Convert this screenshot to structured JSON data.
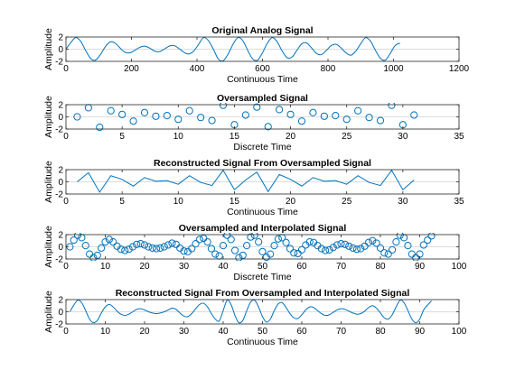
{
  "figure": {
    "background": "#ffffff",
    "line_color": "#0072BD",
    "grid_color": "#d0d0d0"
  },
  "chart_data": [
    {
      "type": "line",
      "title": "Original Analog Signal",
      "xlabel": "Continuous Time",
      "ylabel": "Amplitude",
      "xlim": [
        0,
        1200
      ],
      "ylim": [
        -2,
        2
      ],
      "xticks": [
        0,
        200,
        400,
        600,
        800,
        1000,
        1200
      ],
      "yticks": [
        -2,
        0,
        2
      ],
      "grid": true,
      "legend": "none",
      "series": [
        {
          "marker": "none",
          "x": [
            0,
            15,
            30,
            45,
            60,
            75,
            90,
            105,
            120,
            135,
            150,
            165,
            180,
            195,
            210,
            225,
            240,
            255,
            270,
            285,
            300,
            315,
            330,
            345,
            360,
            375,
            390,
            405,
            420,
            435,
            450,
            465,
            480,
            495,
            510,
            525,
            540,
            555,
            570,
            585,
            600,
            615,
            630,
            645,
            660,
            675,
            690,
            705,
            720,
            735,
            750,
            765,
            780,
            795,
            810,
            825,
            840,
            855,
            870,
            885,
            900,
            915,
            930,
            945,
            960,
            975,
            990,
            1005,
            1020
          ],
          "y": [
            0,
            1.1,
            1.9,
            1.3,
            -0.2,
            -1.5,
            -1.8,
            -0.9,
            0.4,
            1.2,
            1.0,
            0.2,
            -0.5,
            -0.6,
            -0.2,
            0.3,
            0.5,
            0.2,
            -0.3,
            -0.4,
            0,
            0.5,
            0.6,
            0.1,
            -0.5,
            -0.8,
            -0.3,
            0.8,
            1.9,
            1.4,
            0,
            -1.6,
            -1.9,
            -0.8,
            0.8,
            1.9,
            1.4,
            -0.2,
            -1.6,
            -1.8,
            -0.6,
            1.0,
            1.9,
            1.2,
            -0.3,
            -1.4,
            -1.3,
            -0.2,
            0.9,
            1.0,
            0.2,
            -0.7,
            -0.9,
            -0.2,
            0.6,
            0.8,
            0.2,
            -0.6,
            -1.0,
            -0.3,
            0.9,
            1.9,
            1.3,
            -0.2,
            -1.5,
            -1.8,
            -0.7,
            0.6,
            1.0
          ]
        }
      ]
    },
    {
      "type": "scatter",
      "title": "Oversampled Signal",
      "xlabel": "Discrete Time",
      "ylabel": "Amplitude",
      "xlim": [
        0,
        35
      ],
      "ylim": [
        -2,
        2
      ],
      "xticks": [
        0,
        5,
        10,
        15,
        20,
        25,
        30,
        35
      ],
      "yticks": [
        -2,
        0,
        2
      ],
      "grid": true,
      "legend": "none",
      "series": [
        {
          "marker": "o",
          "x": [
            1,
            2,
            3,
            4,
            5,
            6,
            7,
            8,
            9,
            10,
            11,
            12,
            13,
            14,
            15,
            16,
            17,
            18,
            19,
            20,
            21,
            22,
            23,
            24,
            25,
            26,
            27,
            28,
            29,
            30,
            31
          ],
          "y": [
            0,
            1.5,
            -1.7,
            1.0,
            0.4,
            -0.7,
            0.7,
            0.1,
            0.2,
            -0.4,
            1.0,
            -0.1,
            -0.6,
            1.9,
            -1.3,
            0.3,
            1.6,
            -1.6,
            1.2,
            0.4,
            -0.7,
            0.7,
            0.1,
            0.2,
            -0.4,
            1.0,
            -0.1,
            -0.6,
            1.9,
            -1.3,
            0.3
          ]
        }
      ]
    },
    {
      "type": "line",
      "title": "Reconstructed Signal From Oversampled Signal",
      "xlabel": "Continuous Time",
      "ylabel": "Amplitude",
      "xlim": [
        0,
        35
      ],
      "ylim": [
        -2,
        2
      ],
      "xticks": [
        0,
        5,
        10,
        15,
        20,
        25,
        30,
        35
      ],
      "yticks": [
        -2,
        0,
        2
      ],
      "grid": true,
      "legend": "none",
      "series": [
        {
          "marker": "none",
          "x": [
            1,
            2,
            3,
            4,
            5,
            6,
            7,
            8,
            9,
            10,
            11,
            12,
            13,
            14,
            15,
            16,
            17,
            18,
            19,
            20,
            21,
            22,
            23,
            24,
            25,
            26,
            27,
            28,
            29,
            30,
            31
          ],
          "y": [
            0,
            1.5,
            -1.7,
            1.0,
            0.4,
            -0.7,
            0.7,
            0.1,
            0.2,
            -0.4,
            1.0,
            -0.1,
            -0.6,
            1.9,
            -1.3,
            0.3,
            1.6,
            -1.6,
            1.2,
            0.4,
            -0.7,
            0.7,
            0.1,
            0.2,
            -0.4,
            1.0,
            -0.1,
            -0.6,
            1.9,
            -1.3,
            0.3
          ]
        }
      ]
    },
    {
      "type": "scatter",
      "title": "Oversampled and Interpolated Signal",
      "xlabel": "Discrete Time",
      "ylabel": "Amplitude",
      "xlim": [
        0,
        100
      ],
      "ylim": [
        -2,
        2
      ],
      "xticks": [
        0,
        10,
        20,
        30,
        40,
        50,
        60,
        70,
        80,
        90,
        100
      ],
      "yticks": [
        -2,
        0,
        2
      ],
      "grid": true,
      "legend": "none",
      "series": [
        {
          "marker": "o",
          "x": [
            1,
            2,
            3,
            4,
            5,
            6,
            7,
            8,
            9,
            10,
            11,
            12,
            13,
            14,
            15,
            16,
            17,
            18,
            19,
            20,
            21,
            22,
            23,
            24,
            25,
            26,
            27,
            28,
            29,
            30,
            31,
            32,
            33,
            34,
            35,
            36,
            37,
            38,
            39,
            40,
            41,
            42,
            43,
            44,
            45,
            46,
            47,
            48,
            49,
            50,
            51,
            52,
            53,
            54,
            55,
            56,
            57,
            58,
            59,
            60,
            61,
            62,
            63,
            64,
            65,
            66,
            67,
            68,
            69,
            70,
            71,
            72,
            73,
            74,
            75,
            76,
            77,
            78,
            79,
            80,
            81,
            82,
            83,
            84,
            85,
            86,
            87,
            88,
            89,
            90,
            91,
            92,
            93
          ],
          "y": [
            0,
            1.1,
            1.9,
            1.5,
            0.2,
            -1.2,
            -1.8,
            -1.4,
            -0.2,
            0.8,
            1.2,
            0.8,
            0.1,
            -0.4,
            -0.6,
            -0.4,
            0,
            0.4,
            0.5,
            0.3,
            0,
            -0.2,
            -0.3,
            -0.2,
            0,
            0.3,
            0.6,
            0.4,
            -0.2,
            -0.7,
            -0.8,
            -0.3,
            0.5,
            1.2,
            1.4,
            0.8,
            -0.3,
            -1.2,
            -1.5,
            0.2,
            1.9,
            1.2,
            -0.6,
            -1.8,
            -1.4,
            0.2,
            1.6,
            1.9,
            0.8,
            -0.8,
            -1.7,
            -1.2,
            0.2,
            1.3,
            1.5,
            0.7,
            -0.3,
            -1.0,
            -1.1,
            -0.5,
            0.3,
            0.8,
            0.7,
            0.2,
            -0.3,
            -0.6,
            -0.5,
            -0.1,
            0.3,
            0.5,
            0.4,
            0.1,
            -0.2,
            -0.4,
            -0.3,
            0.1,
            0.7,
            1.0,
            0.6,
            -0.2,
            -1.0,
            -1.2,
            -0.5,
            0.8,
            1.9,
            1.5,
            0.2,
            -1.2,
            -1.8,
            -1.2,
            0.3,
            1.1,
            1.8
          ]
        }
      ]
    },
    {
      "type": "line",
      "title": "Reconstructed Signal From Oversampled and Interpolated Signal",
      "xlabel": "Continuous Time",
      "ylabel": "Amplitude",
      "xlim": [
        0,
        100
      ],
      "ylim": [
        -2,
        2
      ],
      "xticks": [
        0,
        10,
        20,
        30,
        40,
        50,
        60,
        70,
        80,
        90,
        100
      ],
      "yticks": [
        -2,
        0,
        2
      ],
      "grid": true,
      "legend": "none",
      "series": [
        {
          "marker": "none",
          "x": [
            1,
            2,
            3,
            4,
            5,
            6,
            7,
            8,
            9,
            10,
            11,
            12,
            13,
            14,
            15,
            16,
            17,
            18,
            19,
            20,
            21,
            22,
            23,
            24,
            25,
            26,
            27,
            28,
            29,
            30,
            31,
            32,
            33,
            34,
            35,
            36,
            37,
            38,
            39,
            40,
            41,
            42,
            43,
            44,
            45,
            46,
            47,
            48,
            49,
            50,
            51,
            52,
            53,
            54,
            55,
            56,
            57,
            58,
            59,
            60,
            61,
            62,
            63,
            64,
            65,
            66,
            67,
            68,
            69,
            70,
            71,
            72,
            73,
            74,
            75,
            76,
            77,
            78,
            79,
            80,
            81,
            82,
            83,
            84,
            85,
            86,
            87,
            88,
            89,
            90,
            91,
            92,
            93
          ],
          "y": [
            0,
            1.1,
            1.9,
            1.5,
            0.2,
            -1.2,
            -1.8,
            -1.4,
            -0.2,
            0.8,
            1.2,
            0.8,
            0.1,
            -0.4,
            -0.6,
            -0.4,
            0,
            0.4,
            0.5,
            0.3,
            0,
            -0.2,
            -0.3,
            -0.2,
            0,
            0.3,
            0.6,
            0.4,
            -0.2,
            -0.7,
            -0.8,
            -0.3,
            0.5,
            1.2,
            1.4,
            0.8,
            -0.3,
            -1.2,
            -1.5,
            0.2,
            1.9,
            1.2,
            -0.6,
            -1.8,
            -1.4,
            0.2,
            1.6,
            1.9,
            0.8,
            -0.8,
            -1.7,
            -1.2,
            0.2,
            1.3,
            1.5,
            0.7,
            -0.3,
            -1.0,
            -1.1,
            -0.5,
            0.3,
            0.8,
            0.7,
            0.2,
            -0.3,
            -0.6,
            -0.5,
            -0.1,
            0.3,
            0.5,
            0.4,
            0.1,
            -0.2,
            -0.4,
            -0.3,
            0.1,
            0.7,
            1.0,
            0.6,
            -0.2,
            -1.0,
            -1.2,
            -0.5,
            0.8,
            1.9,
            1.5,
            0.2,
            -1.2,
            -1.8,
            -1.2,
            0.3,
            1.1,
            1.8
          ]
        }
      ]
    }
  ]
}
